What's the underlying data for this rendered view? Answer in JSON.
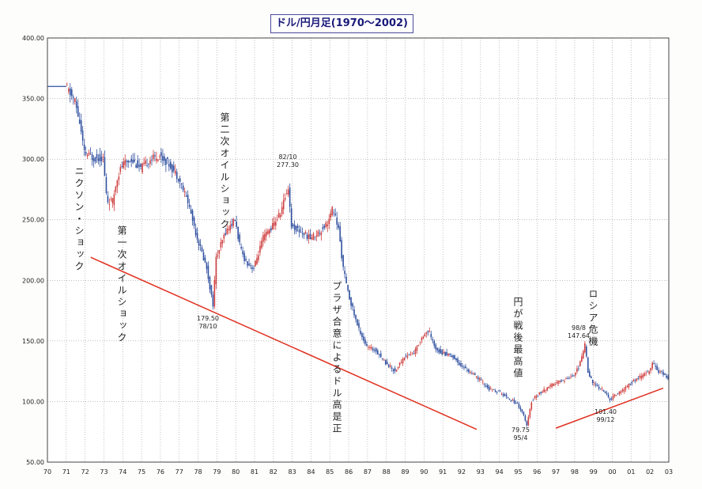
{
  "chart_data": {
    "type": "candlestick",
    "title": "ドル/円月足(1970〜2002)",
    "xlabel": "",
    "ylabel": "",
    "ylim": [
      50,
      400
    ],
    "x_range": [
      1970,
      2003
    ],
    "x_tick_labels": [
      "70",
      "71",
      "72",
      "73",
      "74",
      "75",
      "76",
      "77",
      "78",
      "79",
      "80",
      "81",
      "82",
      "83",
      "84",
      "85",
      "86",
      "87",
      "88",
      "89",
      "90",
      "91",
      "92",
      "93",
      "94",
      "95",
      "96",
      "97",
      "98",
      "99",
      "00",
      "01",
      "02",
      "03"
    ],
    "y_tick_labels": [
      "400.00",
      "350.00",
      "300.00",
      "250.00",
      "200.00",
      "150.00",
      "100.00",
      "50.00"
    ],
    "y_ticks": [
      400,
      350,
      300,
      250,
      200,
      150,
      100,
      50
    ],
    "grid": true,
    "series": [
      {
        "x": [
          1970.0,
          1971.0,
          1971.5,
          1971.75,
          1972.0,
          1972.5,
          1973.0,
          1973.2,
          1973.5,
          1973.75,
          1974.0,
          1974.5,
          1975.0,
          1975.5,
          1976.0,
          1976.5,
          1977.0,
          1977.5,
          1978.0,
          1978.5,
          1978.83,
          1979.0,
          1979.5,
          1980.0,
          1980.3,
          1980.6,
          1981.0,
          1981.5,
          1982.0,
          1982.4,
          1982.83,
          1983.0,
          1983.5,
          1984.0,
          1984.5,
          1985.0,
          1985.2,
          1985.5,
          1985.75,
          1986.0,
          1986.5,
          1987.0,
          1987.5,
          1988.0,
          1988.5,
          1989.0,
          1989.5,
          1990.0,
          1990.3,
          1990.6,
          1991.0,
          1991.5,
          1992.0,
          1992.5,
          1993.0,
          1993.5,
          1994.0,
          1994.5,
          1995.0,
          1995.3,
          1995.5,
          1995.75,
          1996.0,
          1996.5,
          1997.0,
          1997.5,
          1998.0,
          1998.3,
          1998.6,
          1998.75,
          1999.0,
          1999.5,
          1999.95,
          2000.2,
          2000.5,
          2001.0,
          2001.5,
          2002.0,
          2002.2,
          2002.5,
          2003.0
        ],
        "y": [
          360,
          360,
          348,
          330,
          305,
          301,
          301,
          265,
          265,
          285,
          295,
          300,
          292,
          300,
          303,
          296,
          285,
          265,
          235,
          210,
          179.5,
          218,
          240,
          250,
          225,
          215,
          210,
          235,
          245,
          255,
          277.3,
          245,
          240,
          235,
          240,
          250,
          260,
          242,
          210,
          190,
          163,
          145,
          142,
          132,
          125,
          137,
          140,
          155,
          158,
          145,
          140,
          138,
          130,
          124,
          118,
          110,
          108,
          103,
          98,
          90,
          79.75,
          100,
          105,
          110,
          115,
          118,
          122,
          130,
          147.64,
          125,
          115,
          110,
          101.4,
          106,
          108,
          115,
          120,
          125,
          132,
          125,
          120
        ]
      }
    ],
    "annotations": [
      {
        "text": "ニクソン・ショック"
      },
      {
        "text": "第一次オイルショック"
      },
      {
        "text": "第二次オイルショック"
      },
      {
        "text": "プラザ合意によるドル高是正"
      },
      {
        "text": "円が戦後最高値"
      },
      {
        "text": "ロシア危機"
      },
      {
        "text": "82/10",
        "value_text": "277.30"
      },
      {
        "text": "179.50",
        "date_text": "78/10"
      },
      {
        "text": "79.75",
        "date_text": "95/4"
      },
      {
        "text": "98/8",
        "value_text": "147.64"
      },
      {
        "text": "101.40",
        "date_text": "99/12"
      }
    ],
    "trendlines": [
      {
        "from": [
          1972.3,
          219
        ],
        "to": [
          1992.8,
          77
        ]
      },
      {
        "from": [
          1997.0,
          78
        ],
        "to": [
          2002.7,
          111
        ]
      }
    ],
    "colors": {
      "up": "#d04040",
      "down": "#3050a0",
      "trendline": "#e03020",
      "grid": "#9a9a9a",
      "title": "#1a1a7a"
    }
  }
}
